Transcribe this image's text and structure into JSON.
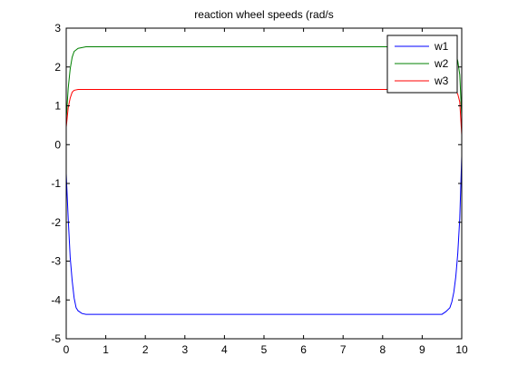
{
  "chart_data": {
    "type": "line",
    "title": "reaction wheel speeds (rad/s",
    "xlabel": "",
    "ylabel": "",
    "xlim": [
      0,
      10
    ],
    "ylim": [
      -5,
      3
    ],
    "xticks": [
      "0",
      "1",
      "2",
      "3",
      "4",
      "5",
      "6",
      "7",
      "8",
      "9",
      "10"
    ],
    "yticks": [
      "-5",
      "-4",
      "-3",
      "-2",
      "-1",
      "0",
      "1",
      "2",
      "3"
    ],
    "grid": false,
    "legend_position": "top-right",
    "series": [
      {
        "name": "w1",
        "color": "#0000ff",
        "x": [
          0,
          0.05,
          0.1,
          0.15,
          0.2,
          0.25,
          0.3,
          0.4,
          0.5,
          1,
          2,
          3,
          4,
          5,
          6,
          7,
          8,
          9,
          9.5,
          9.6,
          9.7,
          9.75,
          9.8,
          9.85,
          9.9,
          9.95,
          10
        ],
        "y": [
          -0.75,
          -1.9,
          -2.9,
          -3.5,
          -3.95,
          -4.2,
          -4.28,
          -4.35,
          -4.37,
          -4.37,
          -4.37,
          -4.37,
          -4.37,
          -4.37,
          -4.37,
          -4.37,
          -4.37,
          -4.37,
          -4.37,
          -4.3,
          -4.2,
          -4.05,
          -3.8,
          -3.4,
          -2.8,
          -1.9,
          -0.3
        ]
      },
      {
        "name": "w2",
        "color": "#008000",
        "x": [
          0,
          0.05,
          0.1,
          0.15,
          0.2,
          0.3,
          0.4,
          0.5,
          1,
          2,
          3,
          4,
          5,
          6,
          7,
          8,
          9,
          9.5,
          9.7,
          9.8,
          9.85,
          9.9,
          9.95,
          10
        ],
        "y": [
          0.65,
          1.45,
          1.95,
          2.25,
          2.4,
          2.48,
          2.5,
          2.52,
          2.52,
          2.52,
          2.52,
          2.52,
          2.52,
          2.52,
          2.52,
          2.52,
          2.52,
          2.52,
          2.5,
          2.45,
          2.35,
          2.15,
          1.8,
          0.7
        ]
      },
      {
        "name": "w3",
        "color": "#ff0000",
        "x": [
          0,
          0.05,
          0.1,
          0.15,
          0.2,
          0.3,
          0.5,
          1,
          2,
          3,
          4,
          5,
          6,
          7,
          8,
          9,
          9.5,
          9.8,
          9.85,
          9.9,
          9.95,
          10
        ],
        "y": [
          0.45,
          0.95,
          1.2,
          1.35,
          1.4,
          1.42,
          1.42,
          1.42,
          1.42,
          1.42,
          1.42,
          1.42,
          1.42,
          1.42,
          1.42,
          1.42,
          1.42,
          1.42,
          1.38,
          1.3,
          1.1,
          0.25
        ]
      }
    ]
  }
}
